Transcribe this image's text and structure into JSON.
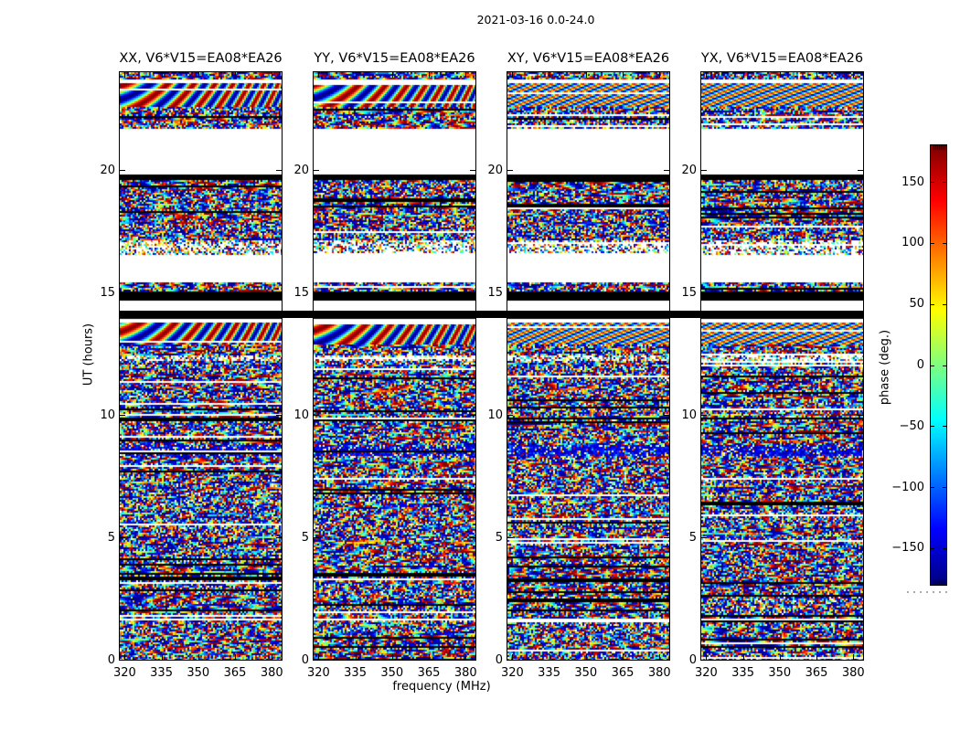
{
  "chart_data": {
    "type": "heatmap",
    "title": "2021-03-16 0.0-24.0",
    "xlabel": "frequency (MHz)",
    "ylabel": "UT (hours)",
    "xlim": [
      318,
      384
    ],
    "ylim": [
      0,
      24
    ],
    "x_ticks": [
      320,
      335,
      350,
      365,
      380
    ],
    "y_ticks": [
      0,
      5,
      10,
      15,
      20
    ],
    "grid": false,
    "panels": [
      {
        "label": "XX, V6*V15=EA08*EA26",
        "pol": "XX",
        "texture": "coarse",
        "seed": 11
      },
      {
        "label": "YY, V6*V15=EA08*EA26",
        "pol": "YY",
        "texture": "coarse",
        "seed": 22
      },
      {
        "label": "XY, V6*V15=EA08*EA26",
        "pol": "XY",
        "texture": "fine",
        "seed": 33
      },
      {
        "label": "YX, V6*V15=EA08*EA26",
        "pol": "YX",
        "texture": "fine",
        "seed": 44
      }
    ],
    "colorbar": {
      "label": "phase (deg.)",
      "ticks": [
        150,
        100,
        50,
        0,
        -50,
        -100,
        -150
      ],
      "min": -180,
      "max": 180,
      "colormap": "jet"
    },
    "time_segments": [
      {
        "from": 23.7,
        "to": 24.0,
        "type": "noise"
      },
      {
        "from": 23.55,
        "to": 23.7,
        "type": "white"
      },
      {
        "from": 22.55,
        "to": 23.55,
        "type": "wave"
      },
      {
        "from": 21.72,
        "to": 22.55,
        "type": "noise"
      },
      {
        "from": 19.85,
        "to": 21.72,
        "type": "white"
      },
      {
        "from": 19.6,
        "to": 19.85,
        "type": "black"
      },
      {
        "from": 17.1,
        "to": 19.6,
        "type": "noise"
      },
      {
        "from": 16.55,
        "to": 17.1,
        "type": "noise-sparse"
      },
      {
        "from": 15.4,
        "to": 16.55,
        "type": "white"
      },
      {
        "from": 15.05,
        "to": 15.4,
        "type": "noise"
      },
      {
        "from": 14.7,
        "to": 15.05,
        "type": "black"
      },
      {
        "from": 14.25,
        "to": 14.7,
        "type": "white"
      },
      {
        "from": 13.95,
        "to": 14.25,
        "type": "black"
      },
      {
        "from": 13.75,
        "to": 13.95,
        "type": "white"
      },
      {
        "from": 12.85,
        "to": 13.75,
        "type": "wave"
      },
      {
        "from": 12.45,
        "to": 12.85,
        "type": "noise"
      },
      {
        "from": 12.2,
        "to": 12.45,
        "type": "noise-sparse"
      },
      {
        "from": 8.75,
        "to": 12.2,
        "type": "noise"
      },
      {
        "from": 8.35,
        "to": 8.75,
        "type": "noise-dark"
      },
      {
        "from": 1.7,
        "to": 8.35,
        "type": "noise"
      },
      {
        "from": 1.58,
        "to": 1.7,
        "type": "white"
      },
      {
        "from": 0.0,
        "to": 1.58,
        "type": "noise"
      }
    ],
    "full_width_flag_band_hours": [
      13.95,
      14.25
    ]
  }
}
